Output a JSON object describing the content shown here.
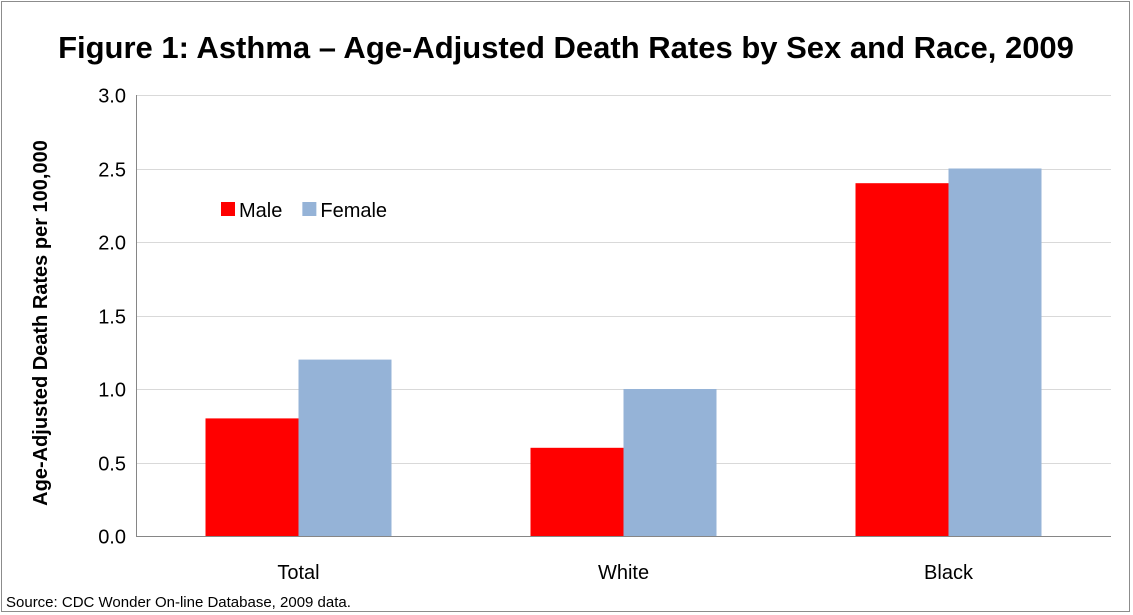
{
  "chart_data": {
    "type": "bar",
    "title": "Figure 1: Asthma – Age-Adjusted Death Rates by Sex and Race, 2009",
    "xlabel": "",
    "ylabel": "Age-Adjusted Death Rates per 100,000",
    "categories": [
      "Total",
      "White",
      "Black"
    ],
    "series": [
      {
        "name": "Male",
        "values": [
          0.8,
          0.6,
          2.4
        ],
        "color": "#ff0000"
      },
      {
        "name": "Female",
        "values": [
          1.2,
          1.0,
          2.5
        ],
        "color": "#95b3d7"
      }
    ],
    "ylim": [
      0,
      3.0
    ],
    "yticks": [
      "0.0",
      "0.5",
      "1.0",
      "1.5",
      "2.0",
      "2.5",
      "3.0"
    ],
    "grid": true,
    "legend_position": "upper-left inside plot"
  },
  "source_note": "Source: CDC Wonder On-line Database, 2009 data."
}
